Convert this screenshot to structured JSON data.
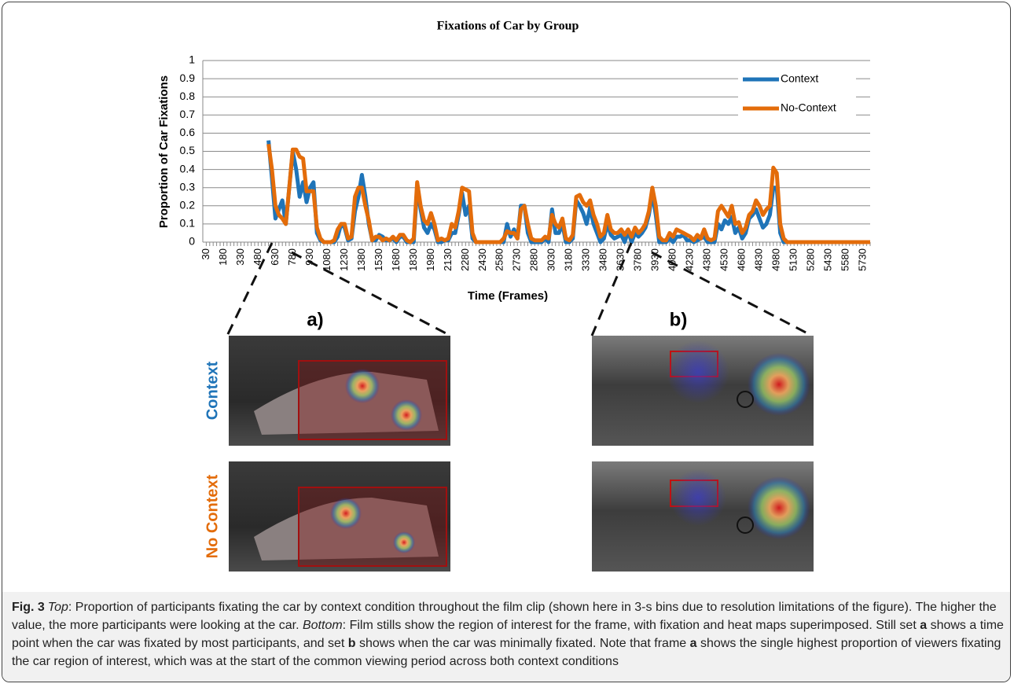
{
  "chart_data": {
    "type": "line",
    "title": "Fixations of Car by Group",
    "x_label": "Time (Frames)",
    "y_label": "Proportion of Car Fixations",
    "x": [
      30,
      60,
      90,
      120,
      150,
      180,
      210,
      240,
      270,
      300,
      330,
      360,
      390,
      420,
      450,
      480,
      510,
      540,
      570,
      600,
      630,
      660,
      690,
      720,
      750,
      780,
      810,
      840,
      870,
      900,
      930,
      960,
      990,
      1020,
      1050,
      1080,
      1110,
      1140,
      1170,
      1200,
      1230,
      1260,
      1290,
      1320,
      1350,
      1380,
      1410,
      1440,
      1470,
      1500,
      1530,
      1560,
      1590,
      1620,
      1650,
      1680,
      1710,
      1740,
      1770,
      1800,
      1830,
      1860,
      1890,
      1920,
      1950,
      1980,
      2010,
      2040,
      2070,
      2100,
      2130,
      2160,
      2190,
      2220,
      2250,
      2280,
      2310,
      2340,
      2370,
      2400,
      2430,
      2460,
      2490,
      2520,
      2550,
      2580,
      2610,
      2640,
      2670,
      2700,
      2730,
      2760,
      2790,
      2820,
      2850,
      2880,
      2910,
      2940,
      2970,
      3000,
      3030,
      3060,
      3090,
      3120,
      3150,
      3180,
      3210,
      3240,
      3270,
      3300,
      3330,
      3360,
      3390,
      3420,
      3450,
      3480,
      3510,
      3540,
      3570,
      3600,
      3630,
      3660,
      3690,
      3720,
      3750,
      3780,
      3810,
      3840,
      3870,
      3900,
      3930,
      3960,
      3990,
      4020,
      4050,
      4080,
      4110,
      4140,
      4170,
      4200,
      4230,
      4260,
      4290,
      4320,
      4350,
      4380,
      4410,
      4440,
      4470,
      4500,
      4530,
      4560,
      4590,
      4620,
      4650,
      4680,
      4710,
      4740,
      4770,
      4800,
      4830,
      4860,
      4890,
      4920,
      4950,
      4980,
      5010,
      5040,
      5070,
      5100,
      5130,
      5160,
      5190,
      5220,
      5250,
      5280,
      5310,
      5340,
      5370,
      5400,
      5430,
      5460,
      5490,
      5520,
      5550,
      5580,
      5610,
      5640,
      5670,
      5700,
      5730,
      5760,
      5790
    ],
    "series": [
      {
        "name": "Context",
        "color": "#1f74b8",
        "values": [
          null,
          null,
          null,
          null,
          null,
          null,
          null,
          null,
          null,
          null,
          null,
          null,
          null,
          null,
          null,
          null,
          null,
          null,
          0.56,
          0.35,
          0.13,
          0.18,
          0.23,
          0.1,
          0.3,
          0.5,
          0.4,
          0.25,
          0.33,
          0.22,
          0.3,
          0.33,
          0.05,
          0.01,
          0,
          0,
          0,
          0,
          0.03,
          0.1,
          0.08,
          0.01,
          0.02,
          0.17,
          0.25,
          0.37,
          0.25,
          0.1,
          0.01,
          0.01,
          0.04,
          0.03,
          0.01,
          0.01,
          0.02,
          0,
          0.03,
          0.03,
          0,
          0,
          0,
          0.3,
          0.18,
          0.08,
          0.05,
          0.1,
          0.07,
          0,
          0,
          0.01,
          0.01,
          0.05,
          0.05,
          0.15,
          0.27,
          0.15,
          0.2,
          0.02,
          0,
          0,
          0,
          0,
          0,
          0,
          0,
          0,
          0,
          0.1,
          0.03,
          0.07,
          0.02,
          0.2,
          0.2,
          0.05,
          0,
          0,
          0,
          0,
          0.02,
          0,
          0.18,
          0.05,
          0.05,
          0.1,
          0,
          0,
          0.02,
          0.23,
          0.2,
          0.16,
          0.1,
          0.19,
          0.1,
          0.05,
          0,
          0.02,
          0.1,
          0.04,
          0.02,
          0.03,
          0.04,
          0,
          0.06,
          0,
          0.05,
          0.03,
          0.05,
          0.08,
          0.15,
          0.27,
          0.15,
          0,
          0,
          0,
          0.02,
          0,
          0.03,
          0.03,
          0.04,
          0.01,
          0.01,
          0,
          0.01,
          0.02,
          0.03,
          0,
          0,
          0,
          0.1,
          0.07,
          0.12,
          0.1,
          0.14,
          0.05,
          0.08,
          0.02,
          0.05,
          0.13,
          0.15,
          0.18,
          0.13,
          0.08,
          0.1,
          0.15,
          0.3,
          0.3,
          0.05,
          0,
          0,
          0,
          0,
          0,
          0,
          0,
          0,
          0,
          0,
          0,
          0,
          0,
          0,
          0,
          0,
          0,
          0,
          0,
          0,
          0,
          0,
          0,
          0,
          0,
          0
        ]
      },
      {
        "name": "No-Context",
        "color": "#e36c0a",
        "values": [
          null,
          null,
          null,
          null,
          null,
          null,
          null,
          null,
          null,
          null,
          null,
          null,
          null,
          null,
          null,
          null,
          null,
          null,
          0.54,
          0.4,
          0.2,
          0.15,
          0.13,
          0.1,
          0.3,
          0.51,
          0.51,
          0.47,
          0.46,
          0.28,
          0.28,
          0.28,
          0.08,
          0.02,
          0,
          0,
          0,
          0.01,
          0.07,
          0.1,
          0.1,
          0.02,
          0.03,
          0.25,
          0.3,
          0.3,
          0.2,
          0.12,
          0.01,
          0.03,
          0.03,
          0.01,
          0.02,
          0.01,
          0.03,
          0.01,
          0.04,
          0.04,
          0.01,
          0,
          0.02,
          0.33,
          0.2,
          0.12,
          0.1,
          0.16,
          0.1,
          0.01,
          0.02,
          0.01,
          0.02,
          0.1,
          0.08,
          0.17,
          0.3,
          0.29,
          0.28,
          0.05,
          0,
          0,
          0,
          0,
          0,
          0,
          0,
          0,
          0.02,
          0.06,
          0.05,
          0.05,
          0.02,
          0.18,
          0.2,
          0.1,
          0.02,
          0.01,
          0.01,
          0.01,
          0.03,
          0.02,
          0.15,
          0.1,
          0.08,
          0.13,
          0.02,
          0.01,
          0.04,
          0.25,
          0.26,
          0.22,
          0.2,
          0.23,
          0.15,
          0.1,
          0.03,
          0.05,
          0.15,
          0.07,
          0.05,
          0.05,
          0.07,
          0.04,
          0.07,
          0.03,
          0.08,
          0.05,
          0.07,
          0.1,
          0.17,
          0.3,
          0.2,
          0.03,
          0.01,
          0.01,
          0.05,
          0.03,
          0.07,
          0.06,
          0.05,
          0.04,
          0.03,
          0.01,
          0.04,
          0.02,
          0.07,
          0.02,
          0.01,
          0.02,
          0.17,
          0.2,
          0.17,
          0.14,
          0.2,
          0.1,
          0.11,
          0.05,
          0.08,
          0.15,
          0.17,
          0.23,
          0.2,
          0.15,
          0.18,
          0.2,
          0.41,
          0.38,
          0.1,
          0.02,
          0,
          0,
          0,
          0,
          0,
          0,
          0,
          0,
          0,
          0,
          0,
          0,
          0,
          0,
          0,
          0,
          0,
          0,
          0,
          0,
          0,
          0,
          0,
          0,
          0
        ]
      }
    ],
    "xlim": [
      0,
      5790
    ],
    "ylim": [
      0,
      1
    ],
    "xticks": [
      30,
      180,
      330,
      480,
      630,
      780,
      930,
      1080,
      1230,
      1380,
      1530,
      1680,
      1830,
      1980,
      2130,
      2280,
      2430,
      2580,
      2730,
      2880,
      3030,
      3180,
      3330,
      3480,
      3630,
      3780,
      3930,
      4080,
      4230,
      4380,
      4530,
      4680,
      4830,
      4980,
      5130,
      5280,
      5430,
      5580,
      5730
    ],
    "yticks": [
      0,
      0.1,
      0.2,
      0.3,
      0.4,
      0.5,
      0.6,
      0.7,
      0.8,
      0.9,
      1
    ],
    "grid": true,
    "legend": "upper right"
  },
  "panels": [
    "a)",
    "b)"
  ],
  "rows": [
    "Context",
    "No Context"
  ],
  "caption": {
    "label": "Fig. 3",
    "parts": [
      "Top",
      ": Proportion of participants fixating the car by context condition throughout the film clip (shown here in 3-s bins due to resolution limitations of the figure). The higher the value, the more participants were looking at the car. ",
      "Bottom",
      ": Film stills show the region of interest for the frame, with fixation and heat maps superimposed. Still set ",
      "a",
      " shows a time point when the car was fixated by most participants, and set ",
      "b",
      " shows when the car was minimally fixated. Note that frame ",
      "a",
      " shows the single highest proportion of viewers fixating the car region of interest, which was at the start of the common viewing period across both context conditions"
    ]
  }
}
